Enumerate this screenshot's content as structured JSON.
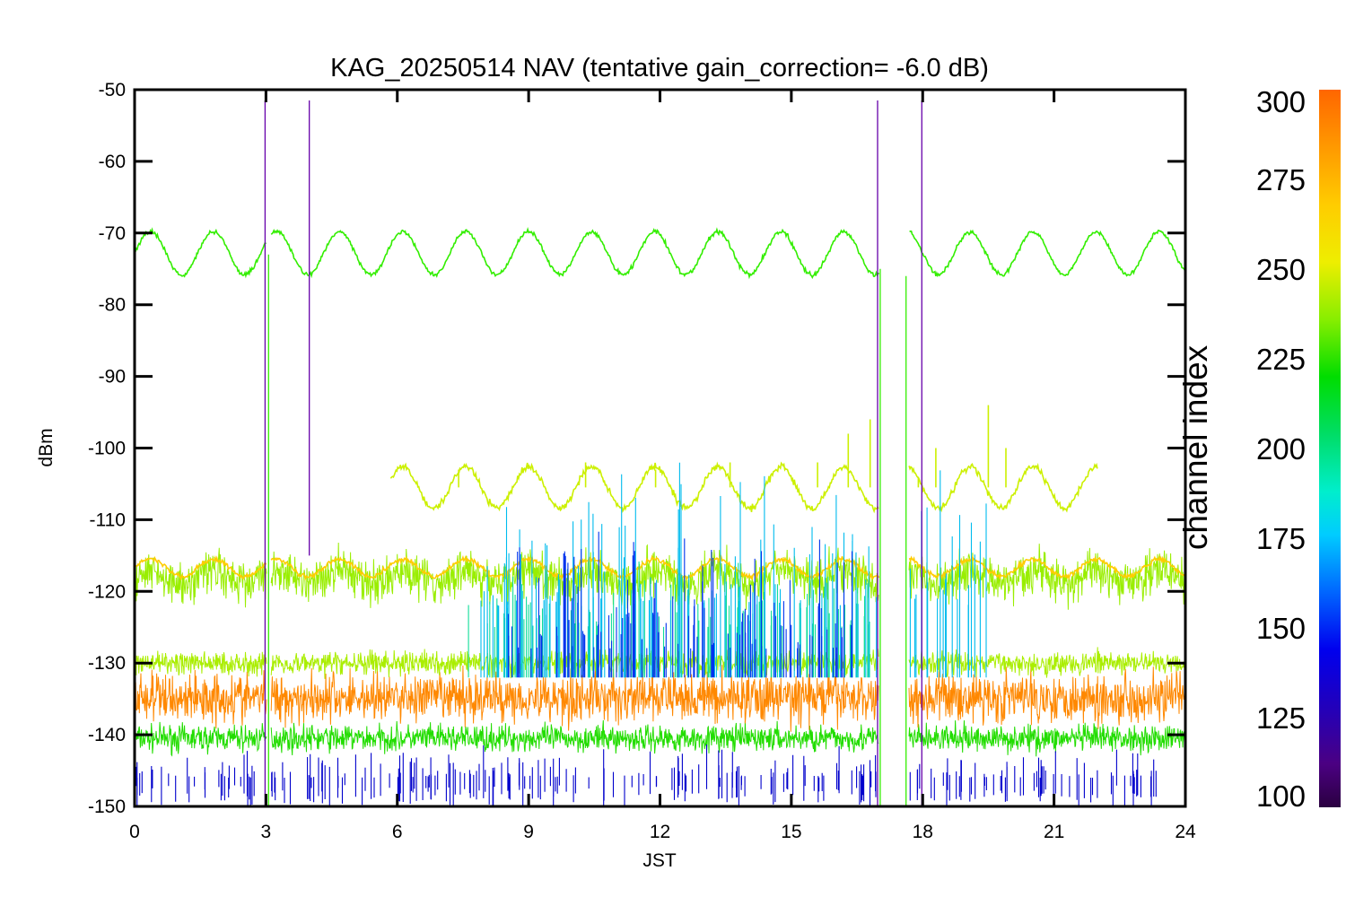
{
  "chart_data": {
    "type": "line",
    "title": "KAG_20250514 NAV (tentative gain_correction= -6.0 dB)",
    "xlabel": "JST",
    "ylabel": "dBm",
    "xlim": [
      0,
      24
    ],
    "ylim": [
      -150,
      -50
    ],
    "xticks": [
      0,
      3,
      6,
      9,
      12,
      15,
      18,
      21,
      24
    ],
    "xtick_labels": [
      "0",
      "3",
      "6",
      "9",
      "12",
      "15",
      "18",
      "21",
      "24"
    ],
    "yticks": [
      -50,
      -60,
      -70,
      -80,
      -90,
      -100,
      -110,
      -120,
      -130,
      -140,
      -150
    ],
    "ytick_labels": [
      "-50",
      "-60",
      "-70",
      "-80",
      "-90",
      "-100",
      "-110",
      "-120",
      "-130",
      "-140",
      "-150"
    ],
    "grid": false,
    "colorbar": {
      "title": "channel index",
      "range": [
        100,
        300
      ],
      "ticks": [
        100,
        125,
        150,
        175,
        200,
        225,
        250,
        275,
        300
      ],
      "tick_labels": [
        "100",
        "125",
        "150",
        "175",
        "200",
        "225",
        "250",
        "275",
        "300"
      ]
    },
    "data_gaps_jst": [
      [
        3.02,
        3.12
      ],
      [
        17.0,
        17.68
      ]
    ],
    "series": [
      {
        "channel_index": 240,
        "color": "#33ee00",
        "x_start": 0,
        "x_end": 24,
        "mean": -72.8,
        "amplitude": 3.0,
        "period_h": 1.44,
        "noise": 0.25
      },
      {
        "channel_index": 263,
        "color": "#ccf000",
        "x_start": 5.85,
        "x_end": 22.0,
        "mean": -105.5,
        "amplitude": 2.9,
        "period_h": 1.44,
        "noise": 0.4,
        "spikes": [
          [
            7.4,
            -103
          ],
          [
            10.3,
            -102
          ],
          [
            11.9,
            -103
          ],
          [
            13.6,
            -102
          ],
          [
            15.6,
            -102
          ],
          [
            16.3,
            -98
          ],
          [
            16.8,
            -96
          ],
          [
            17.9,
            -104
          ],
          [
            18.3,
            -100
          ],
          [
            19.5,
            -94
          ],
          [
            19.9,
            -100
          ]
        ]
      },
      {
        "channel_index": 255,
        "color": "#99ee00",
        "x_start": 0,
        "x_end": 24,
        "mean": -118.0,
        "amplitude": 1.0,
        "period_h": 1.44,
        "noise": 2.6
      },
      {
        "channel_index": 272,
        "color": "#ffcc00",
        "x_start": 0,
        "x_end": 24,
        "mean": -116.7,
        "amplitude": 1.2,
        "period_h": 1.44,
        "noise": 0.3
      },
      {
        "channel_index": 258,
        "color": "#aaee00",
        "x_start": 0,
        "x_end": 24,
        "mean": -130.0,
        "amplitude": 0,
        "period_h": 1.44,
        "noise": 1.4
      },
      {
        "channel_index": 290,
        "color": "#ff8800",
        "x_start": 0,
        "x_end": 24,
        "mean": -134.8,
        "amplitude": 0,
        "period_h": 1.44,
        "noise": 3.0
      },
      {
        "channel_index": 245,
        "color": "#22dd00",
        "x_start": 0,
        "x_end": 24,
        "mean": -140.5,
        "amplitude": 0,
        "period_h": 1.44,
        "noise": 1.6
      }
    ],
    "bursts": [
      {
        "channel_index": 190,
        "color": "#11dd99",
        "x_start": 7.6,
        "x_end": 16.9,
        "y_high": [
          -125,
          -112
        ],
        "y_low": -132
      },
      {
        "channel_index": 175,
        "color": "#00bbee",
        "x_start": 7.8,
        "x_end": 19.5,
        "y_high": [
          -122,
          -96
        ],
        "y_low": -132
      },
      {
        "channel_index": 145,
        "color": "#0033ee",
        "x_start": 8.5,
        "x_end": 16.5,
        "y_high": [
          -128,
          -108
        ],
        "y_low": -132
      },
      {
        "channel_index": 140,
        "color": "#0000cc",
        "x_start": 0,
        "x_end": 24,
        "y_high": [
          -146,
          -141
        ],
        "y_low": -147
      }
    ],
    "vertical_markers": [
      {
        "channel_index": 105,
        "color": "#6600aa",
        "x": 2.98,
        "y_top": -51.5,
        "y_bottom": -150
      },
      {
        "channel_index": 105,
        "color": "#6600aa",
        "x": 3.99,
        "y_top": -51.5,
        "y_bottom": -115
      },
      {
        "channel_index": 105,
        "color": "#6600aa",
        "x": 16.97,
        "y_top": -51.5,
        "y_bottom": -150
      },
      {
        "channel_index": 105,
        "color": "#6600aa",
        "x": 17.98,
        "y_top": -51.5,
        "y_bottom": -150
      },
      {
        "channel_index": 240,
        "color": "#33ee00",
        "x": 3.06,
        "y_top": -73,
        "y_bottom": -150
      },
      {
        "channel_index": 240,
        "color": "#33ee00",
        "x": 17.03,
        "y_top": -75,
        "y_bottom": -150
      },
      {
        "channel_index": 240,
        "color": "#33ee00",
        "x": 17.62,
        "y_top": -76,
        "y_bottom": -150
      }
    ]
  }
}
